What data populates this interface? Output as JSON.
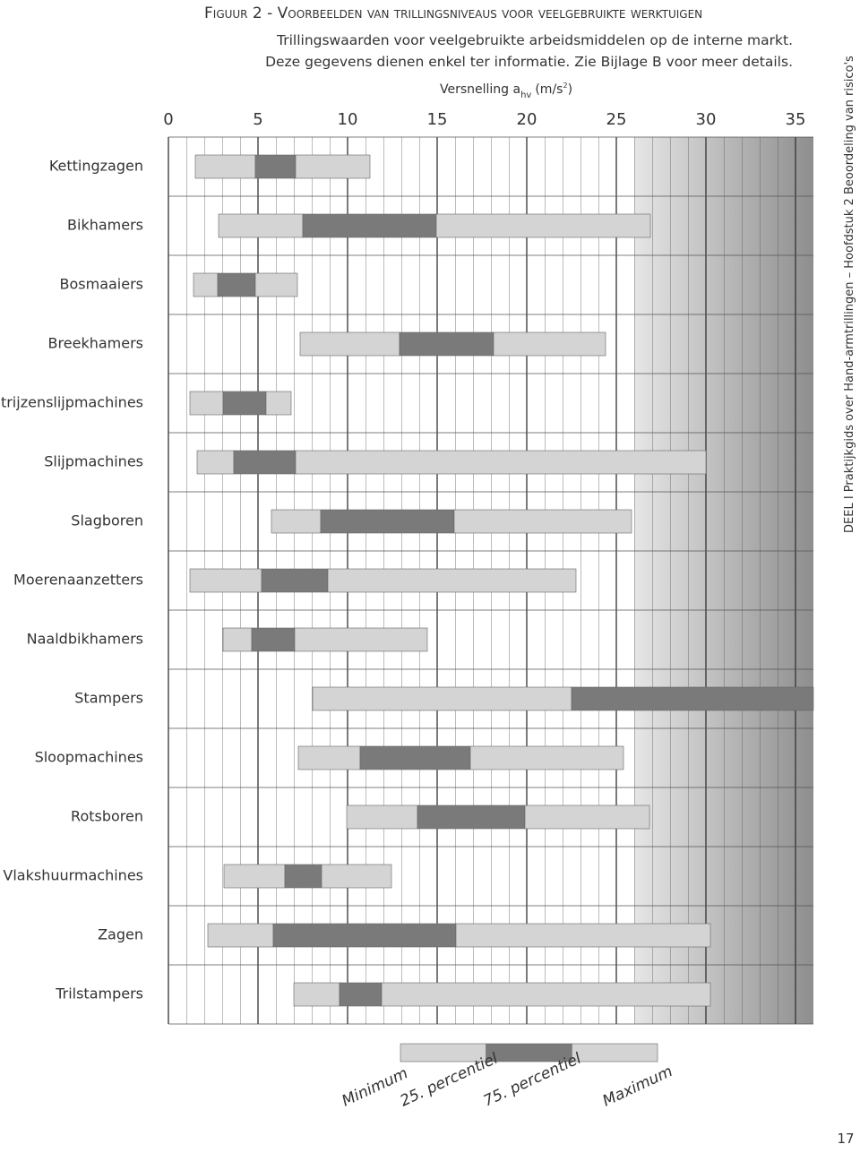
{
  "chart_data": {
    "type": "range",
    "title": "Figuur 2 - Voorbeelden van trillingsniveaus voor veelgebruikte werktuigen",
    "subtitle": [
      "Trillingswaarden voor veelgebruikte arbeidsmiddelen op de interne markt.",
      "Deze gegevens dienen enkel ter informatie. Zie Bijlage B voor meer details."
    ],
    "x_label": {
      "text": "Versnelling a",
      "sub": "hv",
      "unit": "(m/s",
      "sup": "2",
      "close": ")"
    },
    "categories": [
      "Kettingzagen",
      "Bikhamers",
      "Bosmaaiers",
      "Breekhamers",
      "Matrijzenslijpmachines",
      "Slijpmachines",
      "Slagboren",
      "Moerenaanzetters",
      "Naaldbikhamers",
      "Stampers",
      "Sloopmachines",
      "Rotsboren",
      "Vlakshuurmachines",
      "Zagen",
      "Trilstampers"
    ],
    "series": [
      {
        "name": "Minimum",
        "color": "#d4d4d4",
        "values": [
          1.5,
          2.8,
          1.4,
          7.35,
          1.2,
          1.6,
          5.75,
          1.2,
          3.05,
          8.05,
          7.25,
          9.95,
          3.1,
          2.2,
          7
        ]
      },
      {
        "name": "25. percentiel",
        "color": "#7a7a7a",
        "values": [
          4.85,
          7.5,
          2.75,
          12.9,
          3.05,
          3.65,
          8.5,
          5.2,
          4.65,
          22.5,
          10.7,
          13.9,
          6.5,
          5.85,
          9.55
        ]
      },
      {
        "name": "75. percentiel",
        "color": "#7a7a7a",
        "values": [
          7.1,
          14.95,
          4.85,
          18.15,
          5.45,
          7.1,
          15.95,
          8.9,
          7.05,
          36,
          16.85,
          19.9,
          8.55,
          16.05,
          11.9
        ]
      },
      {
        "name": "Maximum",
        "color": "#d4d4d4",
        "values": [
          11.25,
          26.9,
          7.2,
          24.4,
          6.85,
          30,
          25.85,
          22.75,
          14.45,
          36,
          25.4,
          26.85,
          12.45,
          30.25,
          30.25
        ]
      }
    ],
    "xlim": [
      0,
      36
    ],
    "xticks": [
      0,
      5,
      10,
      15,
      20,
      25,
      30,
      35
    ],
    "side_text": "DEEL I Praktijkgids over Hand-armtrillingen – Hoofdstuk 2 Beoordeling van risico's",
    "page_number": "17"
  }
}
